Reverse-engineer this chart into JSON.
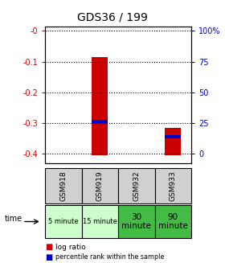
{
  "title": "GDS36 / 199",
  "samples": [
    "GSM918",
    "GSM919",
    "GSM932",
    "GSM933"
  ],
  "time_labels": [
    "5 minute",
    "15 minute",
    "30\nminute",
    "90\nminute"
  ],
  "time_bg_colors": [
    "#ccffcc",
    "#ccffcc",
    "#44bb44",
    "#44bb44"
  ],
  "log_ratio_bottoms": [
    0.0,
    -0.405,
    0.0,
    -0.405
  ],
  "log_ratio_tops": [
    0.0,
    -0.085,
    0.0,
    -0.315
  ],
  "percentile_ranks": [
    null,
    -0.295,
    null,
    -0.345
  ],
  "bar_color": "#cc0000",
  "percentile_color": "#0000cc",
  "left_yticks": [
    0,
    -0.1,
    -0.2,
    -0.3,
    -0.4
  ],
  "left_ylabels": [
    "-0",
    "-0.1",
    "-0.2",
    "-0.3",
    "-0.4"
  ],
  "right_yticks": [
    0,
    -0.1,
    -0.2,
    -0.3,
    -0.4
  ],
  "right_ylabels": [
    "100%",
    "75",
    "50",
    "25",
    "0"
  ],
  "ymin": -0.43,
  "ymax": 0.015,
  "bar_width": 0.45
}
